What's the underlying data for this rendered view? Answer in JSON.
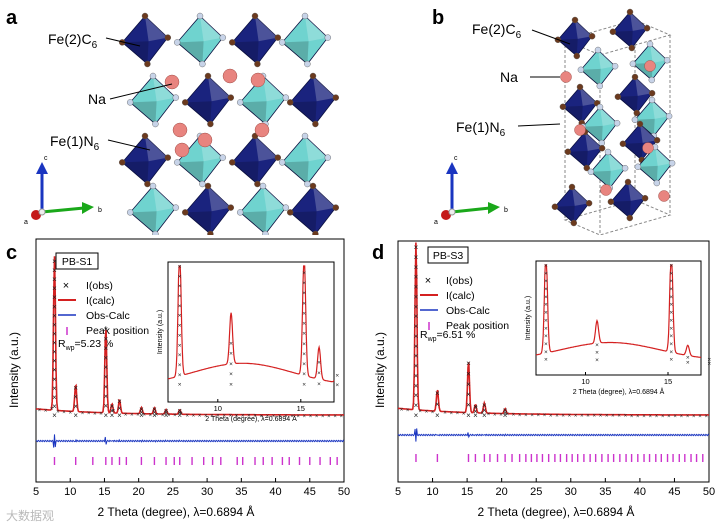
{
  "panel_a": {
    "label": "a",
    "labels": {
      "fe2": "Fe(2)C",
      "fe2_sub": "6",
      "na": "Na",
      "fe1": "Fe(1)N",
      "fe1_sub": "6"
    },
    "axes": {
      "c": "c",
      "a": "a",
      "b": "b"
    }
  },
  "panel_b": {
    "label": "b",
    "labels": {
      "fe2": "Fe(2)C",
      "fe2_sub": "6",
      "na": "Na",
      "fe1": "Fe(1)N",
      "fe1_sub": "6"
    },
    "axes": {
      "c": "c",
      "a": "a",
      "b": "b"
    }
  },
  "colors": {
    "dark_octahedron": "#1a237e",
    "light_octahedron": "#6fd3cf",
    "na_atom": "#e8847f",
    "obs": "#222222",
    "calc": "#d42020",
    "diff": "#1a35c0",
    "peak": "#cc33cc"
  },
  "chart_data": [
    {
      "type": "line",
      "panel": "c",
      "sample": "PB-S1",
      "xlabel": "2 Theta (degree), λ=0.6894 Å",
      "ylabel": "Intensity (a.u.)",
      "xlim": [
        5,
        50
      ],
      "xticks": [
        "5",
        "10",
        "15",
        "20",
        "25",
        "30",
        "35",
        "40",
        "45",
        "50"
      ],
      "legend": [
        "I(obs)",
        "I(calc)",
        "Obs-Calc",
        "Peak position"
      ],
      "r_label": "R",
      "r_sub": "wp",
      "r_value": "=5.23 %",
      "peaks": [
        [
          7.7,
          100
        ],
        [
          10.8,
          18
        ],
        [
          15.2,
          56
        ],
        [
          16.1,
          6
        ],
        [
          17.2,
          9
        ],
        [
          20.4,
          4
        ],
        [
          22.3,
          4
        ],
        [
          24.0,
          3
        ],
        [
          26.0,
          3
        ]
      ],
      "peak_positions": [
        7.7,
        10.8,
        13.3,
        15.2,
        16.1,
        17.2,
        18.2,
        20.4,
        22.3,
        24.0,
        25.2,
        26.0,
        27.8,
        29.5,
        30.8,
        32.0,
        34.4,
        35.2,
        37.0,
        38.2,
        39.5,
        41.0,
        42.0,
        43.5,
        45.0,
        46.5,
        48.0,
        49.0
      ],
      "inset": {
        "xlabel": "2 Theta (degree), λ=0.6894 Å",
        "ylabel": "Intensity (a.u.)",
        "xlim": [
          7,
          17
        ],
        "xticks": [
          "10",
          "15"
        ],
        "peaks": [
          [
            7.7,
            100
          ],
          [
            10.8,
            40
          ],
          [
            15.2,
            95
          ],
          [
            16.1,
            25
          ],
          [
            17.2,
            15
          ]
        ]
      }
    },
    {
      "type": "line",
      "panel": "d",
      "sample": "PB-S3",
      "xlabel": "2 Theta (degree), λ=0.6894 Å",
      "ylabel": "Intensity (a.u.)",
      "xlim": [
        5,
        50
      ],
      "xticks": [
        "5",
        "10",
        "15",
        "20",
        "25",
        "30",
        "35",
        "40",
        "45",
        "50"
      ],
      "legend": [
        "I(obs)",
        "I(calc)",
        "Obs-Calc",
        "Peak position"
      ],
      "r_label": "R",
      "r_sub": "wp",
      "r_value": "=6.51 %",
      "peaks": [
        [
          7.6,
          100
        ],
        [
          10.7,
          13
        ],
        [
          15.2,
          31
        ],
        [
          16.2,
          5
        ],
        [
          17.5,
          6
        ],
        [
          20.5,
          3
        ]
      ],
      "peak_positions": [
        7.6,
        10.7,
        15.2,
        16.2,
        17.5,
        18.3,
        19.4,
        20.5,
        21.5,
        22.6,
        23.5,
        24.3,
        25.1,
        25.9,
        26.8,
        27.7,
        28.5,
        29.4,
        30.2,
        31.0,
        31.9,
        32.8,
        33.6,
        34.5,
        35.4,
        36.2,
        37.1,
        38.0,
        38.8,
        39.7,
        40.6,
        41.4,
        42.3,
        43.1,
        44.0,
        44.8,
        45.7,
        46.5,
        47.4,
        48.2,
        49.1
      ],
      "inset": {
        "xlabel": "2 Theta (degree), λ=0.6894 Å",
        "ylabel": "Intensity (a.u.)",
        "xlim": [
          7,
          17
        ],
        "xticks": [
          "10",
          "15"
        ],
        "peaks": [
          [
            7.6,
            100
          ],
          [
            10.7,
            22
          ],
          [
            15.2,
            100
          ],
          [
            16.2,
            10
          ],
          [
            17.5,
            8
          ]
        ]
      }
    }
  ],
  "watermark": "大数据观"
}
